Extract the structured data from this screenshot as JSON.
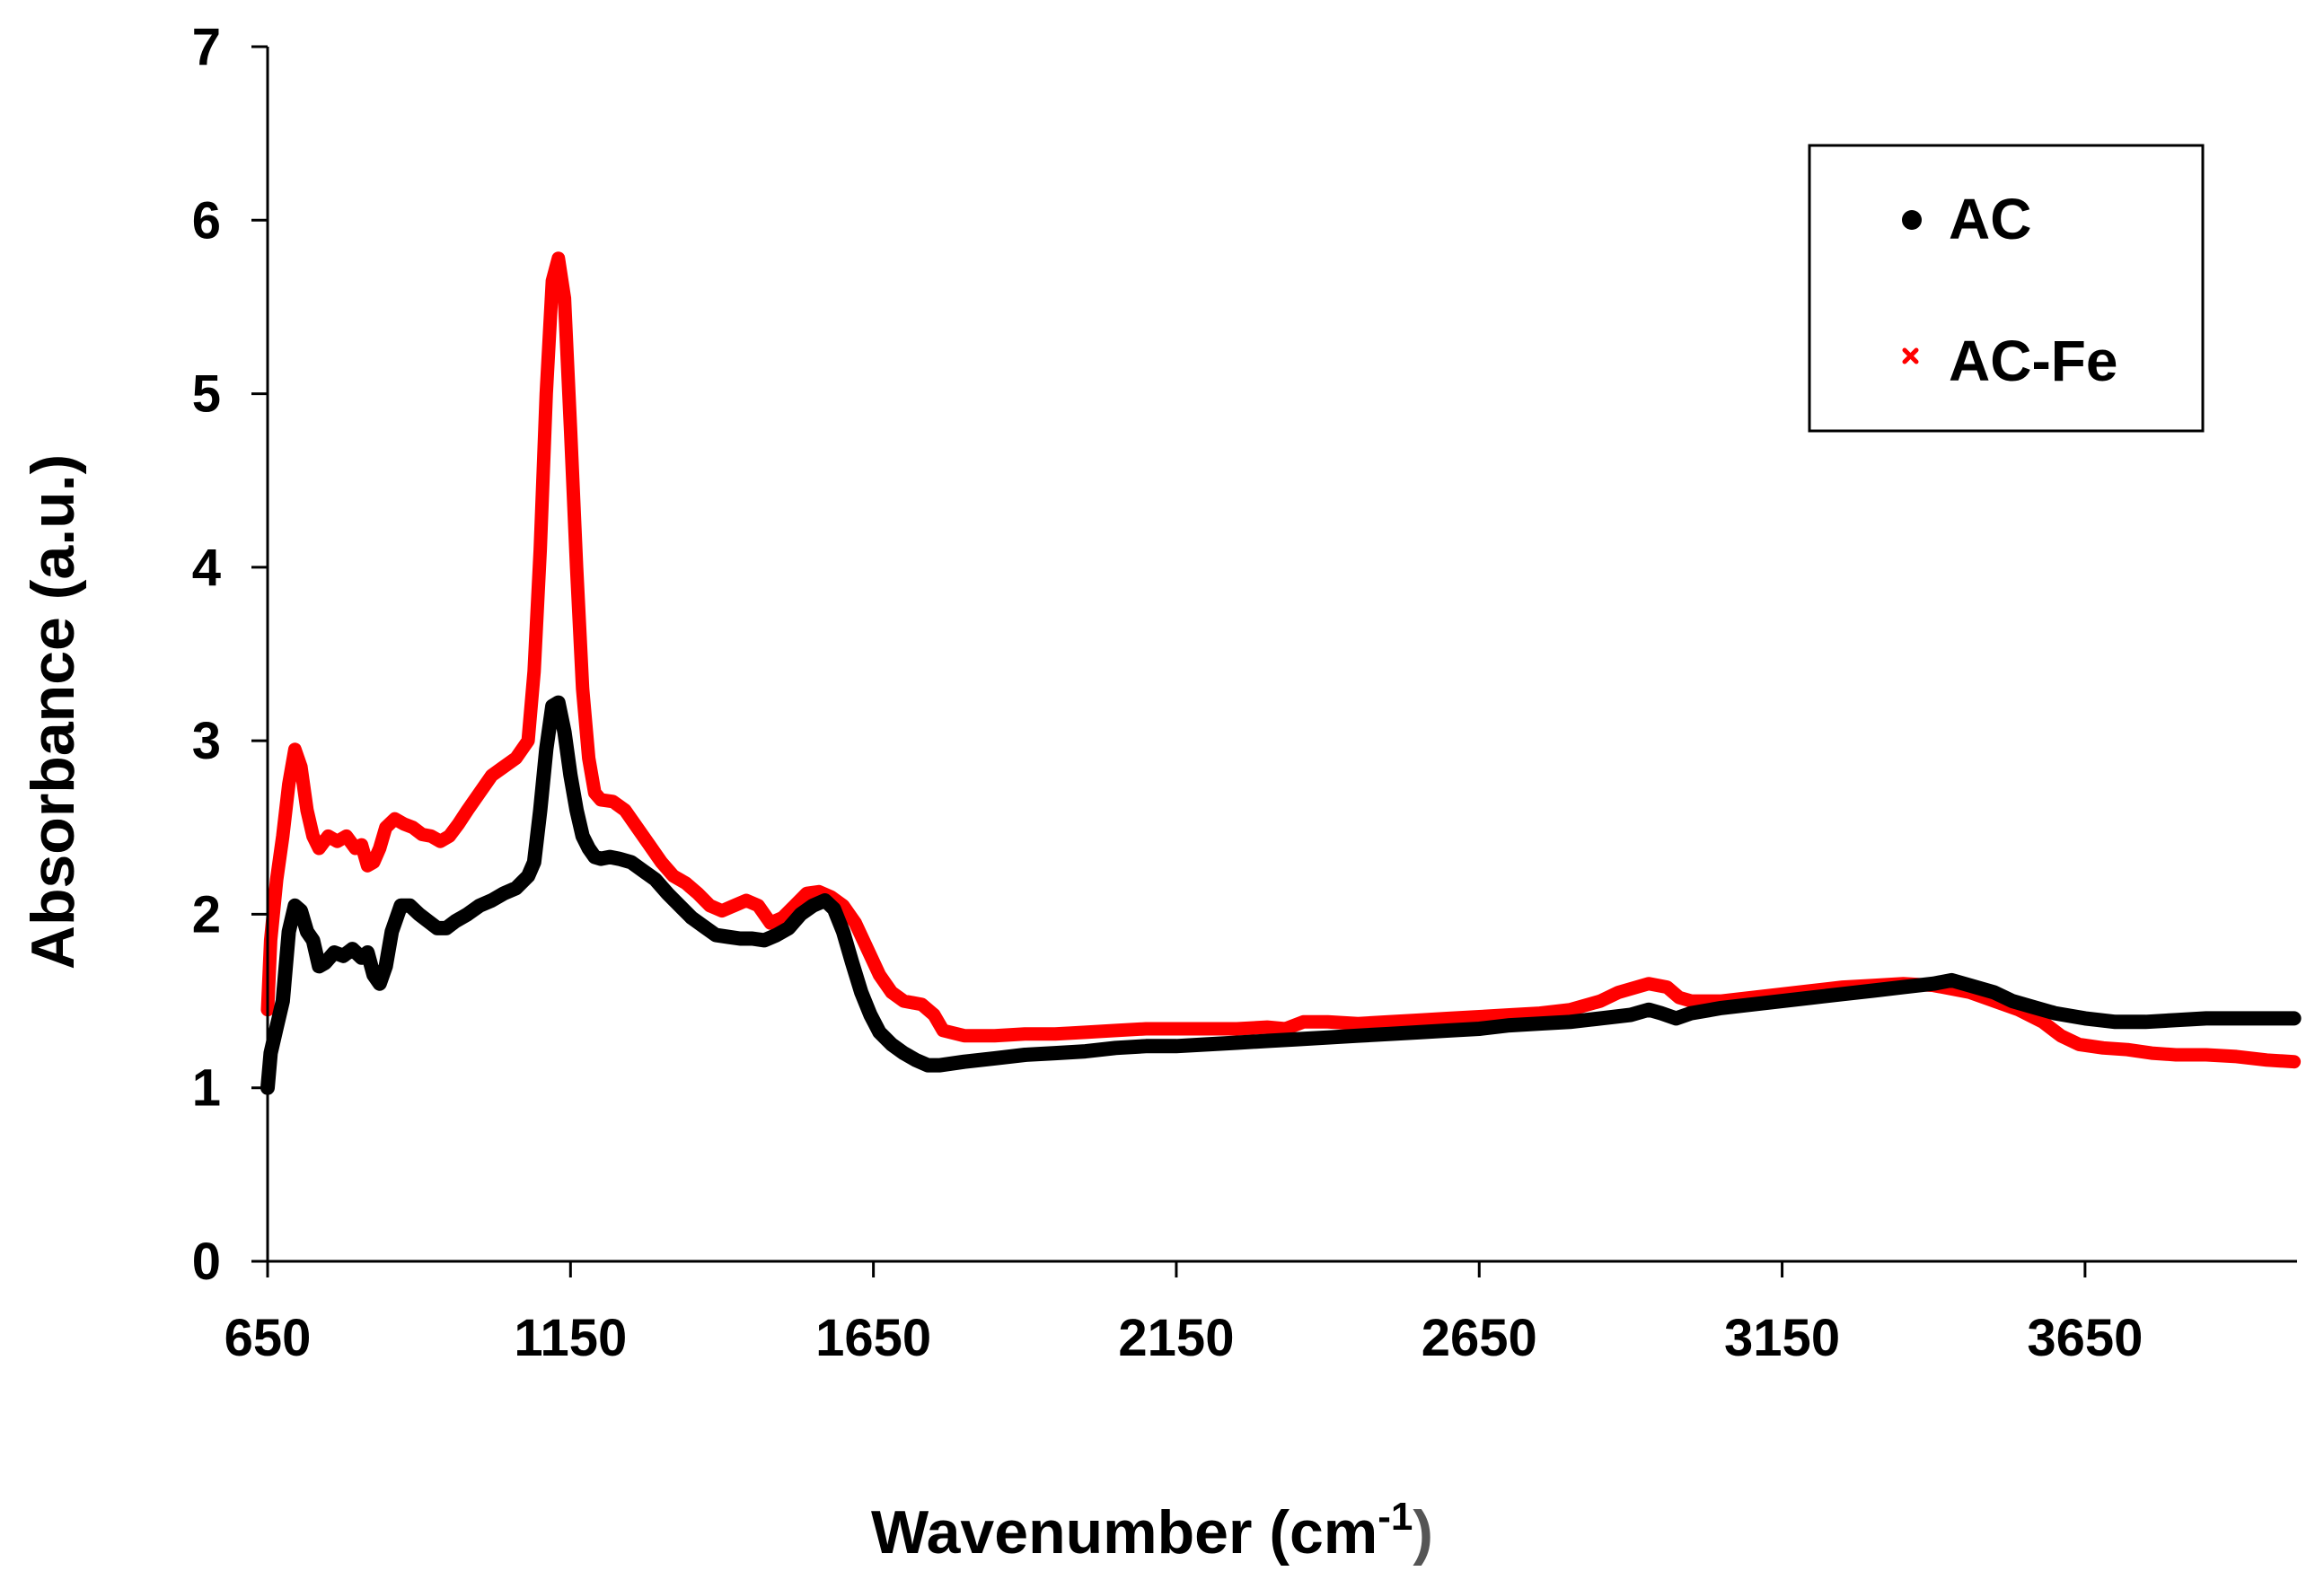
{
  "chart_data": {
    "type": "line",
    "title": "",
    "xlabel": "Wavenumber (cm",
    "xlabel_sup": "-1",
    "xlabel_close": ")",
    "ylabel": "Absorbance (a.u.)",
    "xlim": [
      650,
      4000
    ],
    "ylim": [
      0,
      7
    ],
    "x_ticks": [
      650,
      1150,
      1650,
      2150,
      2650,
      3150,
      3650
    ],
    "y_ticks": [
      0,
      1,
      2,
      3,
      4,
      5,
      6,
      7
    ],
    "grid": false,
    "legend_position": "top-right",
    "series": [
      {
        "name": "AC",
        "color": "#000000",
        "marker": "circle",
        "points": [
          [
            650,
            1.0
          ],
          [
            655,
            1.2
          ],
          [
            665,
            1.35
          ],
          [
            675,
            1.5
          ],
          [
            685,
            1.9
          ],
          [
            695,
            2.05
          ],
          [
            705,
            2.02
          ],
          [
            715,
            1.9
          ],
          [
            725,
            1.85
          ],
          [
            735,
            1.7
          ],
          [
            745,
            1.72
          ],
          [
            760,
            1.78
          ],
          [
            775,
            1.76
          ],
          [
            790,
            1.8
          ],
          [
            805,
            1.75
          ],
          [
            815,
            1.78
          ],
          [
            825,
            1.65
          ],
          [
            835,
            1.6
          ],
          [
            845,
            1.7
          ],
          [
            855,
            1.9
          ],
          [
            870,
            2.05
          ],
          [
            885,
            2.05
          ],
          [
            900,
            2.0
          ],
          [
            915,
            1.96
          ],
          [
            930,
            1.92
          ],
          [
            945,
            1.92
          ],
          [
            960,
            1.96
          ],
          [
            980,
            2.0
          ],
          [
            1000,
            2.05
          ],
          [
            1020,
            2.08
          ],
          [
            1040,
            2.12
          ],
          [
            1060,
            2.15
          ],
          [
            1080,
            2.22
          ],
          [
            1090,
            2.3
          ],
          [
            1100,
            2.6
          ],
          [
            1110,
            2.95
          ],
          [
            1120,
            3.2
          ],
          [
            1130,
            3.22
          ],
          [
            1140,
            3.05
          ],
          [
            1150,
            2.8
          ],
          [
            1160,
            2.6
          ],
          [
            1170,
            2.45
          ],
          [
            1180,
            2.38
          ],
          [
            1190,
            2.33
          ],
          [
            1200,
            2.32
          ],
          [
            1215,
            2.33
          ],
          [
            1230,
            2.32
          ],
          [
            1250,
            2.3
          ],
          [
            1270,
            2.25
          ],
          [
            1290,
            2.2
          ],
          [
            1310,
            2.12
          ],
          [
            1330,
            2.05
          ],
          [
            1350,
            1.98
          ],
          [
            1370,
            1.93
          ],
          [
            1390,
            1.88
          ],
          [
            1410,
            1.87
          ],
          [
            1430,
            1.86
          ],
          [
            1450,
            1.86
          ],
          [
            1470,
            1.85
          ],
          [
            1490,
            1.88
          ],
          [
            1510,
            1.92
          ],
          [
            1530,
            2.0
          ],
          [
            1550,
            2.05
          ],
          [
            1570,
            2.08
          ],
          [
            1585,
            2.03
          ],
          [
            1600,
            1.9
          ],
          [
            1615,
            1.72
          ],
          [
            1630,
            1.55
          ],
          [
            1645,
            1.42
          ],
          [
            1660,
            1.32
          ],
          [
            1680,
            1.25
          ],
          [
            1700,
            1.2
          ],
          [
            1720,
            1.16
          ],
          [
            1740,
            1.13
          ],
          [
            1760,
            1.13
          ],
          [
            1800,
            1.15
          ],
          [
            1850,
            1.17
          ],
          [
            1900,
            1.19
          ],
          [
            1950,
            1.2
          ],
          [
            2000,
            1.21
          ],
          [
            2050,
            1.23
          ],
          [
            2100,
            1.24
          ],
          [
            2150,
            1.24
          ],
          [
            2200,
            1.25
          ],
          [
            2250,
            1.26
          ],
          [
            2300,
            1.27
          ],
          [
            2350,
            1.28
          ],
          [
            2400,
            1.29
          ],
          [
            2450,
            1.3
          ],
          [
            2500,
            1.31
          ],
          [
            2550,
            1.32
          ],
          [
            2600,
            1.33
          ],
          [
            2650,
            1.34
          ],
          [
            2700,
            1.36
          ],
          [
            2750,
            1.37
          ],
          [
            2800,
            1.38
          ],
          [
            2850,
            1.4
          ],
          [
            2900,
            1.42
          ],
          [
            2930,
            1.45
          ],
          [
            2950,
            1.43
          ],
          [
            2975,
            1.4
          ],
          [
            3000,
            1.43
          ],
          [
            3050,
            1.46
          ],
          [
            3100,
            1.48
          ],
          [
            3150,
            1.5
          ],
          [
            3200,
            1.52
          ],
          [
            3250,
            1.54
          ],
          [
            3300,
            1.56
          ],
          [
            3350,
            1.58
          ],
          [
            3400,
            1.6
          ],
          [
            3430,
            1.62
          ],
          [
            3460,
            1.59
          ],
          [
            3500,
            1.55
          ],
          [
            3530,
            1.5
          ],
          [
            3560,
            1.47
          ],
          [
            3600,
            1.43
          ],
          [
            3650,
            1.4
          ],
          [
            3700,
            1.38
          ],
          [
            3750,
            1.38
          ],
          [
            3800,
            1.39
          ],
          [
            3850,
            1.4
          ],
          [
            3900,
            1.4
          ],
          [
            3950,
            1.4
          ],
          [
            3995,
            1.4
          ]
        ]
      },
      {
        "name": "AC-Fe",
        "color": "#ff0000",
        "marker": "x",
        "points": [
          [
            650,
            1.45
          ],
          [
            655,
            1.85
          ],
          [
            665,
            2.2
          ],
          [
            675,
            2.45
          ],
          [
            685,
            2.75
          ],
          [
            695,
            2.95
          ],
          [
            705,
            2.85
          ],
          [
            715,
            2.6
          ],
          [
            725,
            2.45
          ],
          [
            735,
            2.38
          ],
          [
            750,
            2.45
          ],
          [
            765,
            2.42
          ],
          [
            780,
            2.45
          ],
          [
            795,
            2.38
          ],
          [
            805,
            2.4
          ],
          [
            815,
            2.28
          ],
          [
            825,
            2.3
          ],
          [
            835,
            2.38
          ],
          [
            845,
            2.5
          ],
          [
            860,
            2.55
          ],
          [
            875,
            2.52
          ],
          [
            890,
            2.5
          ],
          [
            905,
            2.46
          ],
          [
            920,
            2.45
          ],
          [
            935,
            2.42
          ],
          [
            950,
            2.45
          ],
          [
            965,
            2.52
          ],
          [
            980,
            2.6
          ],
          [
            1000,
            2.7
          ],
          [
            1020,
            2.8
          ],
          [
            1040,
            2.85
          ],
          [
            1060,
            2.9
          ],
          [
            1080,
            3.0
          ],
          [
            1090,
            3.4
          ],
          [
            1100,
            4.1
          ],
          [
            1110,
            5.0
          ],
          [
            1120,
            5.65
          ],
          [
            1130,
            5.78
          ],
          [
            1140,
            5.55
          ],
          [
            1150,
            4.8
          ],
          [
            1160,
            4.0
          ],
          [
            1170,
            3.3
          ],
          [
            1180,
            2.9
          ],
          [
            1190,
            2.7
          ],
          [
            1200,
            2.66
          ],
          [
            1220,
            2.65
          ],
          [
            1240,
            2.6
          ],
          [
            1260,
            2.5
          ],
          [
            1280,
            2.4
          ],
          [
            1300,
            2.3
          ],
          [
            1320,
            2.22
          ],
          [
            1340,
            2.18
          ],
          [
            1360,
            2.12
          ],
          [
            1380,
            2.05
          ],
          [
            1400,
            2.02
          ],
          [
            1420,
            2.05
          ],
          [
            1440,
            2.08
          ],
          [
            1460,
            2.05
          ],
          [
            1480,
            1.95
          ],
          [
            1500,
            1.98
          ],
          [
            1520,
            2.05
          ],
          [
            1540,
            2.12
          ],
          [
            1560,
            2.13
          ],
          [
            1580,
            2.1
          ],
          [
            1600,
            2.05
          ],
          [
            1620,
            1.95
          ],
          [
            1640,
            1.8
          ],
          [
            1660,
            1.65
          ],
          [
            1680,
            1.55
          ],
          [
            1700,
            1.5
          ],
          [
            1730,
            1.48
          ],
          [
            1750,
            1.42
          ],
          [
            1765,
            1.33
          ],
          [
            1800,
            1.3
          ],
          [
            1850,
            1.3
          ],
          [
            1900,
            1.31
          ],
          [
            1950,
            1.31
          ],
          [
            2000,
            1.32
          ],
          [
            2050,
            1.33
          ],
          [
            2100,
            1.34
          ],
          [
            2150,
            1.34
          ],
          [
            2200,
            1.34
          ],
          [
            2250,
            1.34
          ],
          [
            2300,
            1.35
          ],
          [
            2330,
            1.34
          ],
          [
            2360,
            1.38
          ],
          [
            2400,
            1.38
          ],
          [
            2450,
            1.37
          ],
          [
            2500,
            1.38
          ],
          [
            2550,
            1.39
          ],
          [
            2600,
            1.4
          ],
          [
            2650,
            1.41
          ],
          [
            2700,
            1.42
          ],
          [
            2750,
            1.43
          ],
          [
            2800,
            1.45
          ],
          [
            2850,
            1.5
          ],
          [
            2880,
            1.55
          ],
          [
            2910,
            1.58
          ],
          [
            2930,
            1.6
          ],
          [
            2960,
            1.58
          ],
          [
            2980,
            1.52
          ],
          [
            3000,
            1.5
          ],
          [
            3050,
            1.5
          ],
          [
            3100,
            1.52
          ],
          [
            3150,
            1.54
          ],
          [
            3200,
            1.56
          ],
          [
            3250,
            1.58
          ],
          [
            3300,
            1.59
          ],
          [
            3350,
            1.6
          ],
          [
            3400,
            1.59
          ],
          [
            3430,
            1.57
          ],
          [
            3460,
            1.55
          ],
          [
            3500,
            1.5
          ],
          [
            3540,
            1.45
          ],
          [
            3580,
            1.38
          ],
          [
            3610,
            1.3
          ],
          [
            3640,
            1.25
          ],
          [
            3680,
            1.23
          ],
          [
            3720,
            1.22
          ],
          [
            3760,
            1.2
          ],
          [
            3800,
            1.19
          ],
          [
            3850,
            1.19
          ],
          [
            3900,
            1.18
          ],
          [
            3950,
            1.16
          ],
          [
            3995,
            1.15
          ]
        ]
      }
    ]
  }
}
